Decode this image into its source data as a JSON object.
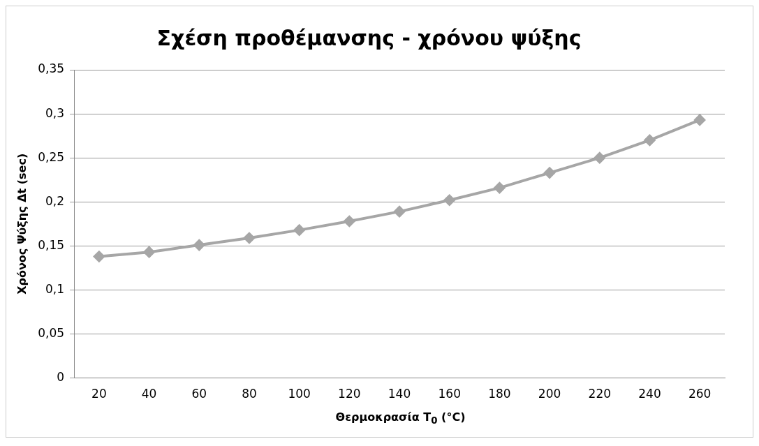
{
  "chart_data": {
    "type": "line",
    "title": "Σχέση προθέμανσης - χρόνου ψύξης",
    "xlabel": "Θερμοκρασία T$_{0}$ (°C)",
    "ylabel": "Χρόνος Ψύξης Δt (sec)",
    "categories": [
      "20",
      "40",
      "60",
      "80",
      "100",
      "120",
      "140",
      "160",
      "180",
      "200",
      "220",
      "240",
      "260"
    ],
    "series": [
      {
        "color": "#a6a6a6",
        "values": [
          0.138,
          0.143,
          0.151,
          0.159,
          0.168,
          0.178,
          0.189,
          0.202,
          0.216,
          0.233,
          0.25,
          0.27,
          0.293
        ]
      }
    ],
    "ylim": [
      0,
      0.35
    ],
    "yticks": [
      {
        "value": 0,
        "label": "0"
      },
      {
        "value": 0.05,
        "label": "0,05"
      },
      {
        "value": 0.1,
        "label": "0,1"
      },
      {
        "value": 0.15,
        "label": "0,15"
      },
      {
        "value": 0.2,
        "label": "0,2"
      },
      {
        "value": 0.25,
        "label": "0,25"
      },
      {
        "value": 0.3,
        "label": "0,3"
      },
      {
        "value": 0.35,
        "label": "0,35"
      }
    ],
    "grid": "y",
    "legend": false,
    "marker": "diamond",
    "line_style": "solid"
  }
}
